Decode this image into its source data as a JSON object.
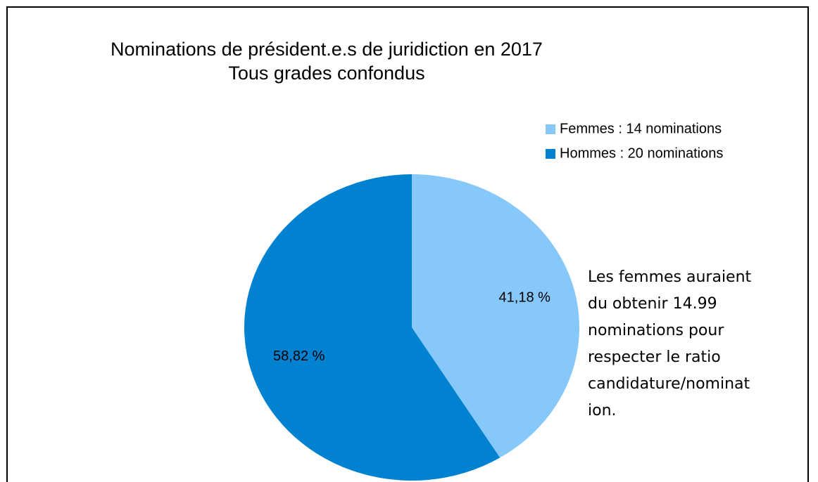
{
  "chart_data": {
    "type": "pie",
    "title": "Nominations de président.e.s de juridiction en 2017",
    "subtitle": "Tous grades confondus",
    "categories": [
      "Femmes : 14 nominations",
      "Hommes : 20 nominations"
    ],
    "values": [
      41.18,
      58.82
    ],
    "value_labels": [
      "41,18 %",
      "58,82 %"
    ],
    "colors": [
      "#87c8fa",
      "#0082d0"
    ],
    "legend": "top-right",
    "annotation": [
      "Les femmes auraient",
      "du obtenir 14.99",
      "nominations pour",
      "respecter le ratio",
      "candidature/nominat",
      "ion."
    ]
  }
}
